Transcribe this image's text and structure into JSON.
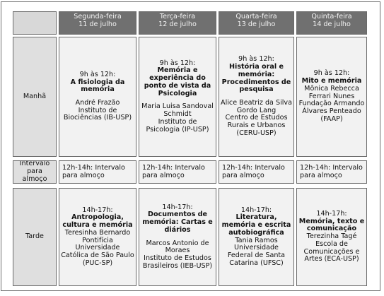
{
  "days": [
    {
      "name": "Segunda-feira",
      "date": "11 de julho"
    },
    {
      "name": "Terça-feira",
      "date": "12 de julho"
    },
    {
      "name": "Quarta-feira",
      "date": "13 de julho"
    },
    {
      "name": "Quinta-feira",
      "date": "14 de julho"
    }
  ],
  "rows": {
    "morning": "Manhã",
    "lunch": "Intervalo para almoço",
    "afternoon": "Tarde"
  },
  "lunch_text": "12h-14h: Intervalo para almoço",
  "morning": [
    {
      "time": "9h às 12h:",
      "title": "A fisiologia da memória",
      "speaker": "André Frazão",
      "institution": "Instituto de Biociências (IB-USP)"
    },
    {
      "time": "9h às 12h:",
      "title": "Memória e experiência do ponto de vista da Psicologia",
      "speaker": "Maria Luisa Sandoval Schmidt",
      "institution": "Instituto de Psicologia (IP-USP)"
    },
    {
      "time": "9h às 12h:",
      "title": "História oral e memória: Procedimentos de pesquisa",
      "speaker": "Alice Beatriz da Silva Gordo Lang",
      "institution": "Centro de Estudos Rurais e Urbanos (CERU-USP)"
    },
    {
      "time": "9h às 12h:",
      "title": "Mito e memória",
      "speaker": "Mônica Rebecca Ferrari Nunes",
      "institution": "Fundação Armando Álvares Penteado (FAAP)"
    }
  ],
  "afternoon": [
    {
      "time": "14h-17h:",
      "title": "Antropologia, cultura e memória",
      "speaker": "Teresinha Bernardo",
      "institution": "Pontifícia Universidade Católica de São Paulo (PUC-SP)"
    },
    {
      "time": "14h-17h:",
      "title": "Documentos de memória: Cartas e diários",
      "speaker": "Marcos Antonio de Moraes",
      "institution": "Instituto de Estudos Brasileiros (IEB-USP)"
    },
    {
      "time": "14h-17h:",
      "title": "Literatura, memória e escrita autobiográfica",
      "speaker": "Tania Ramos",
      "institution": "Universidade Federal de Santa Catarina (UFSC)"
    },
    {
      "time": "14h-17h:",
      "title": "Memória, texto e comunicação",
      "speaker": "Terezinha Tagé",
      "institution": "Escola de Comunicações e Artes (ECA-USP)"
    }
  ]
}
